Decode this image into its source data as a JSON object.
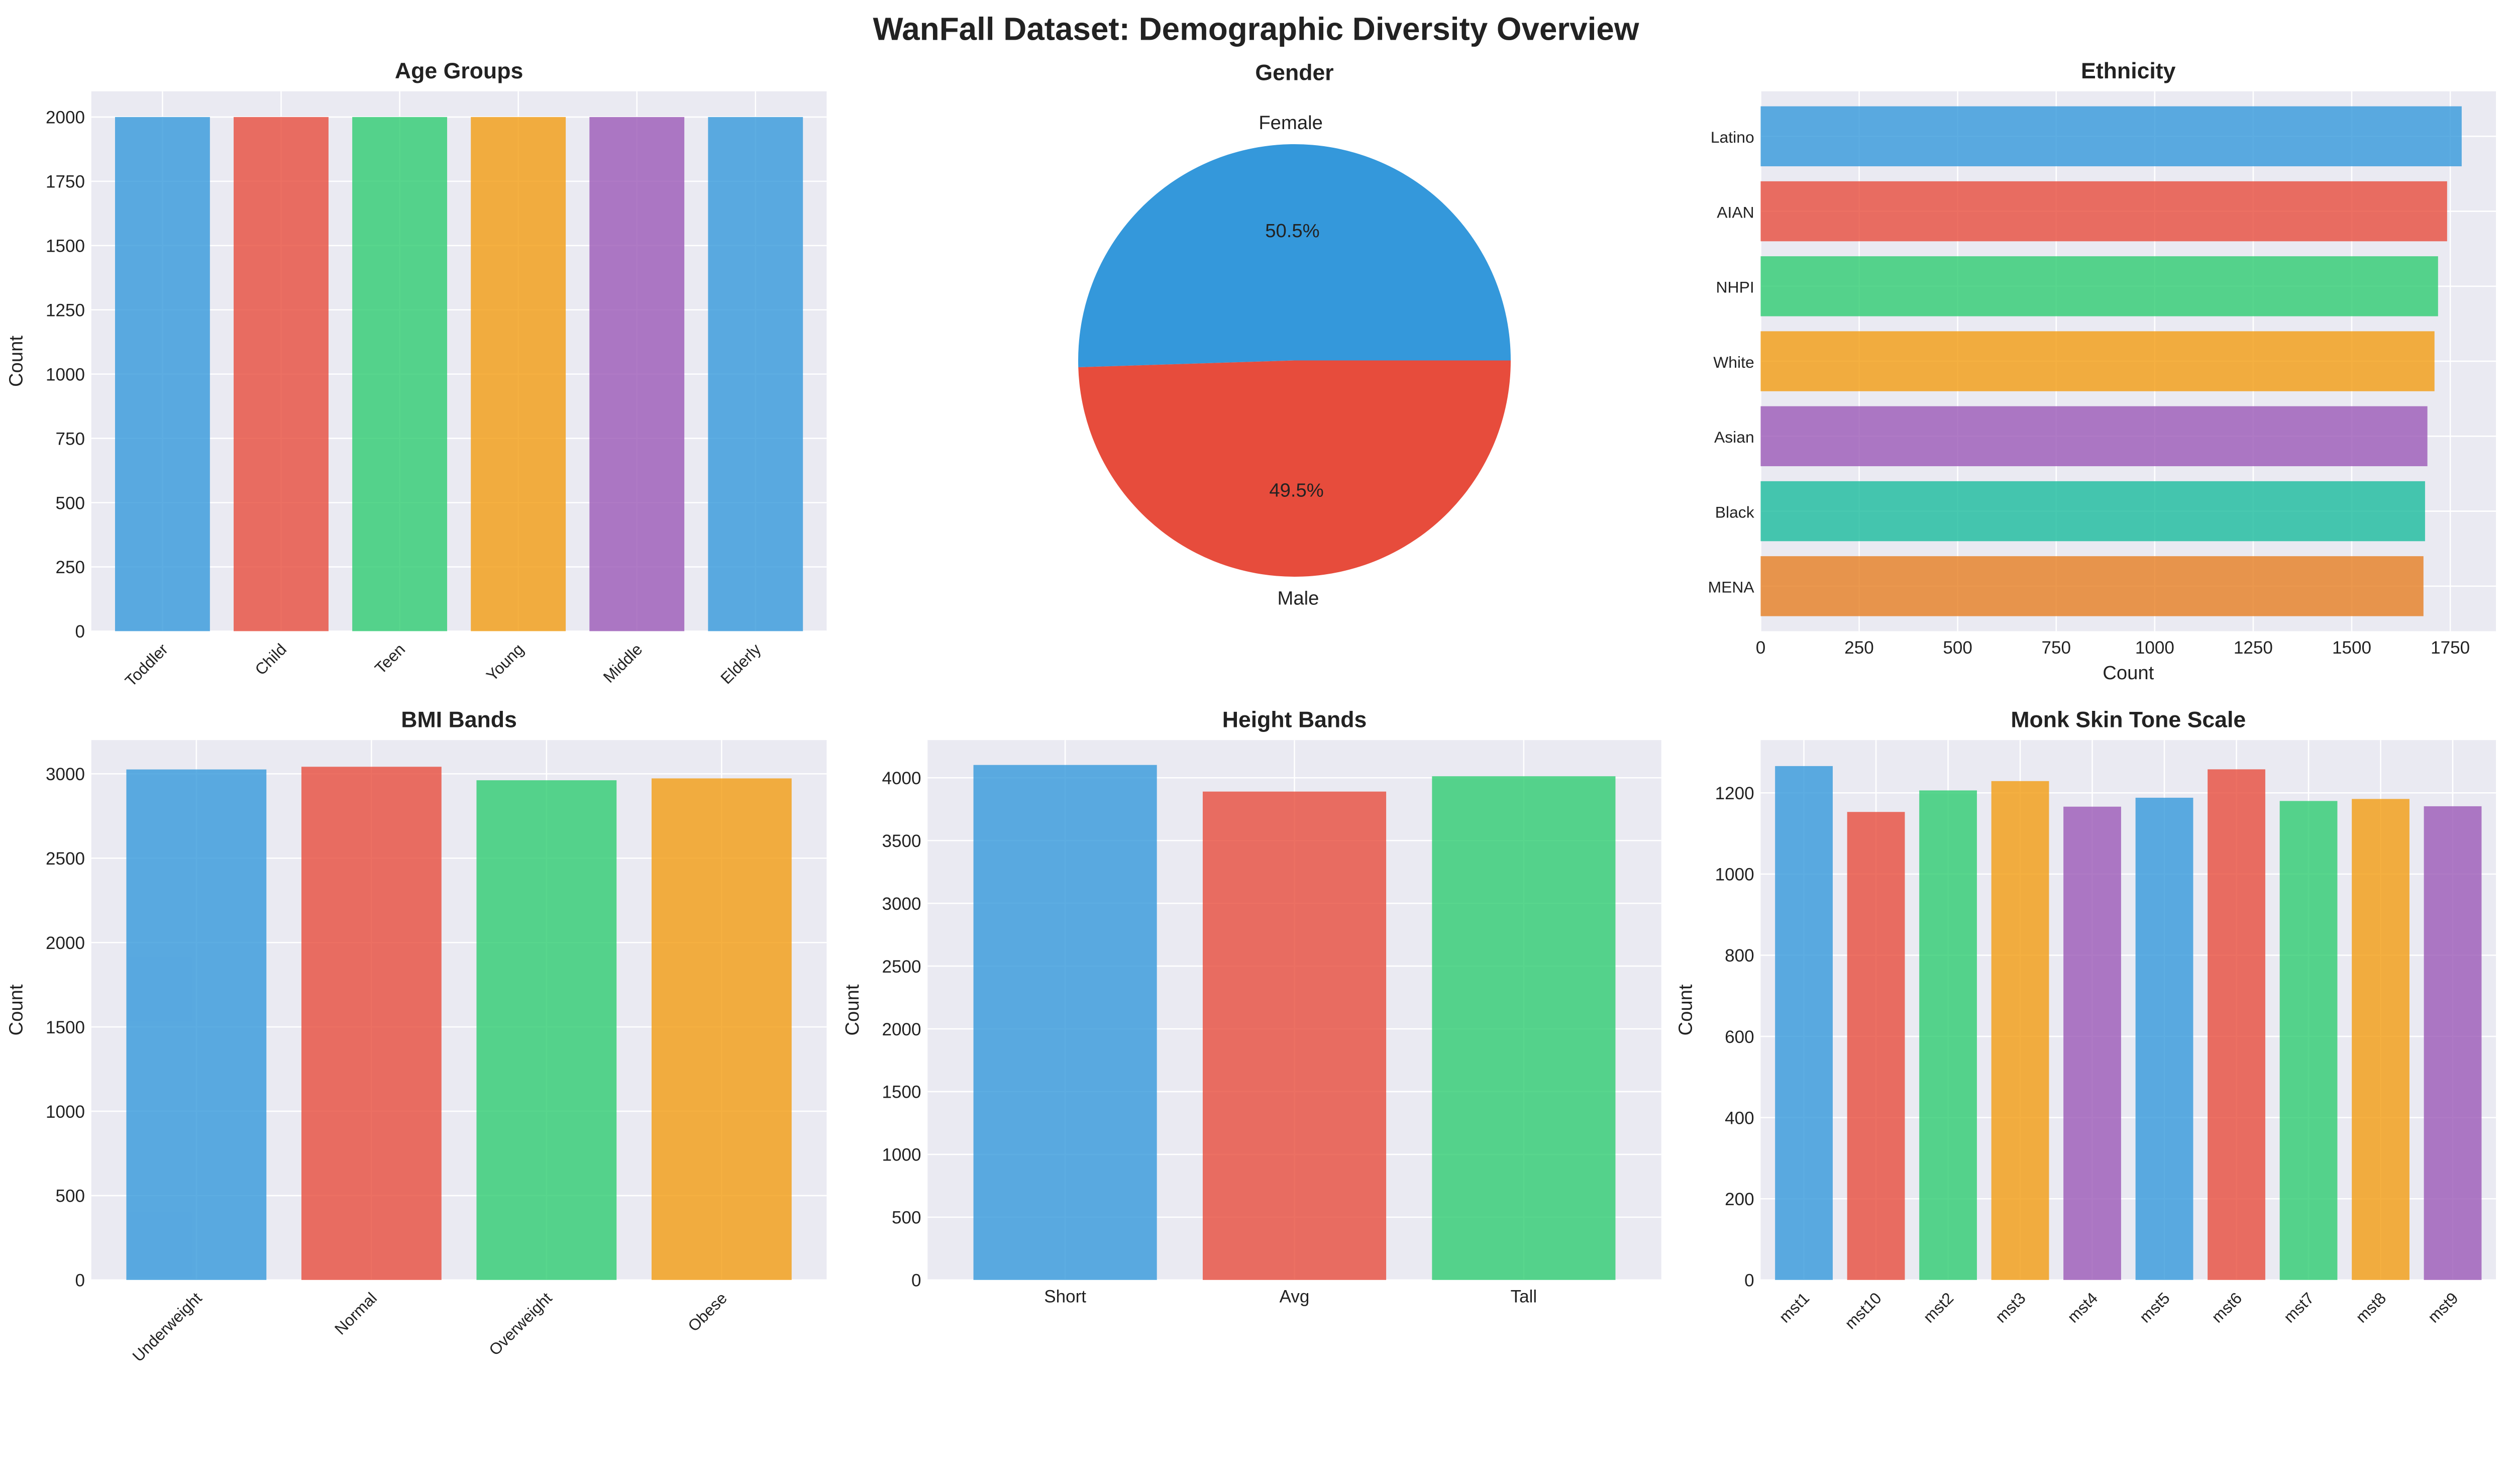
{
  "title": "WanFall Dataset: Demographic Diversity Overview",
  "colors": [
    "#3498db",
    "#e74c3c",
    "#2ecc71",
    "#f39c12",
    "#9b59b6",
    "#1abc9c",
    "#e67e22"
  ],
  "chart_data": [
    {
      "id": "age",
      "type": "bar",
      "title": "Age Groups",
      "xlabel": "",
      "ylabel": "Count",
      "categories": [
        "Toddler",
        "Child",
        "Teen",
        "Young",
        "Middle",
        "Elderly"
      ],
      "values": [
        2000,
        2000,
        2000,
        2000,
        2000,
        2000
      ],
      "ylim": [
        0,
        2100
      ],
      "yticks": [
        0,
        250,
        500,
        750,
        1000,
        1250,
        1500,
        1750,
        2000
      ],
      "xtick_rotation": 45,
      "grid": true
    },
    {
      "id": "gender",
      "type": "pie",
      "title": "Gender",
      "labels": [
        "Female",
        "Male"
      ],
      "values": [
        50.5,
        49.5
      ],
      "pct_labels": [
        "50.5%",
        "49.5%"
      ]
    },
    {
      "id": "ethnicity",
      "type": "barh",
      "title": "Ethnicity",
      "xlabel": "Count",
      "ylabel": "",
      "categories": [
        "Latino",
        "AIAN",
        "NHPI",
        "White",
        "Asian",
        "Black",
        "MENA"
      ],
      "values": [
        1779,
        1742,
        1719,
        1710,
        1692,
        1686,
        1682
      ],
      "xlim": [
        0,
        1866
      ],
      "xticks": [
        0,
        250,
        500,
        750,
        1000,
        1250,
        1500,
        1750
      ],
      "grid": true
    },
    {
      "id": "bmi",
      "type": "bar",
      "title": "BMI Bands",
      "xlabel": "",
      "ylabel": "Count",
      "categories": [
        "Underweight",
        "Normal",
        "Overweight",
        "Obese"
      ],
      "values": [
        3026,
        3042,
        2962,
        2973
      ],
      "ylim": [
        0,
        3200
      ],
      "yticks": [
        0,
        500,
        1000,
        1500,
        2000,
        2500,
        3000
      ],
      "xtick_rotation": 45,
      "grid": true
    },
    {
      "id": "height",
      "type": "bar",
      "title": "Height Bands",
      "xlabel": "",
      "ylabel": "Count",
      "categories": [
        "Short",
        "Avg",
        "Tall"
      ],
      "values": [
        4102,
        3890,
        4012
      ],
      "ylim": [
        0,
        4300
      ],
      "yticks": [
        0,
        500,
        1000,
        1500,
        2000,
        2500,
        3000,
        3500,
        4000
      ],
      "xtick_rotation": 0,
      "grid": true
    },
    {
      "id": "mst",
      "type": "bar",
      "title": "Monk Skin Tone Scale",
      "xlabel": "",
      "ylabel": "Count",
      "categories": [
        "mst1",
        "mst10",
        "mst2",
        "mst3",
        "mst4",
        "mst5",
        "mst6",
        "mst7",
        "mst8",
        "mst9"
      ],
      "values": [
        1266,
        1153,
        1206,
        1229,
        1166,
        1188,
        1258,
        1180,
        1185,
        1167
      ],
      "ylim": [
        0,
        1330
      ],
      "yticks": [
        0,
        200,
        400,
        600,
        800,
        1000,
        1200
      ],
      "xtick_rotation": 45,
      "grid": true
    }
  ]
}
